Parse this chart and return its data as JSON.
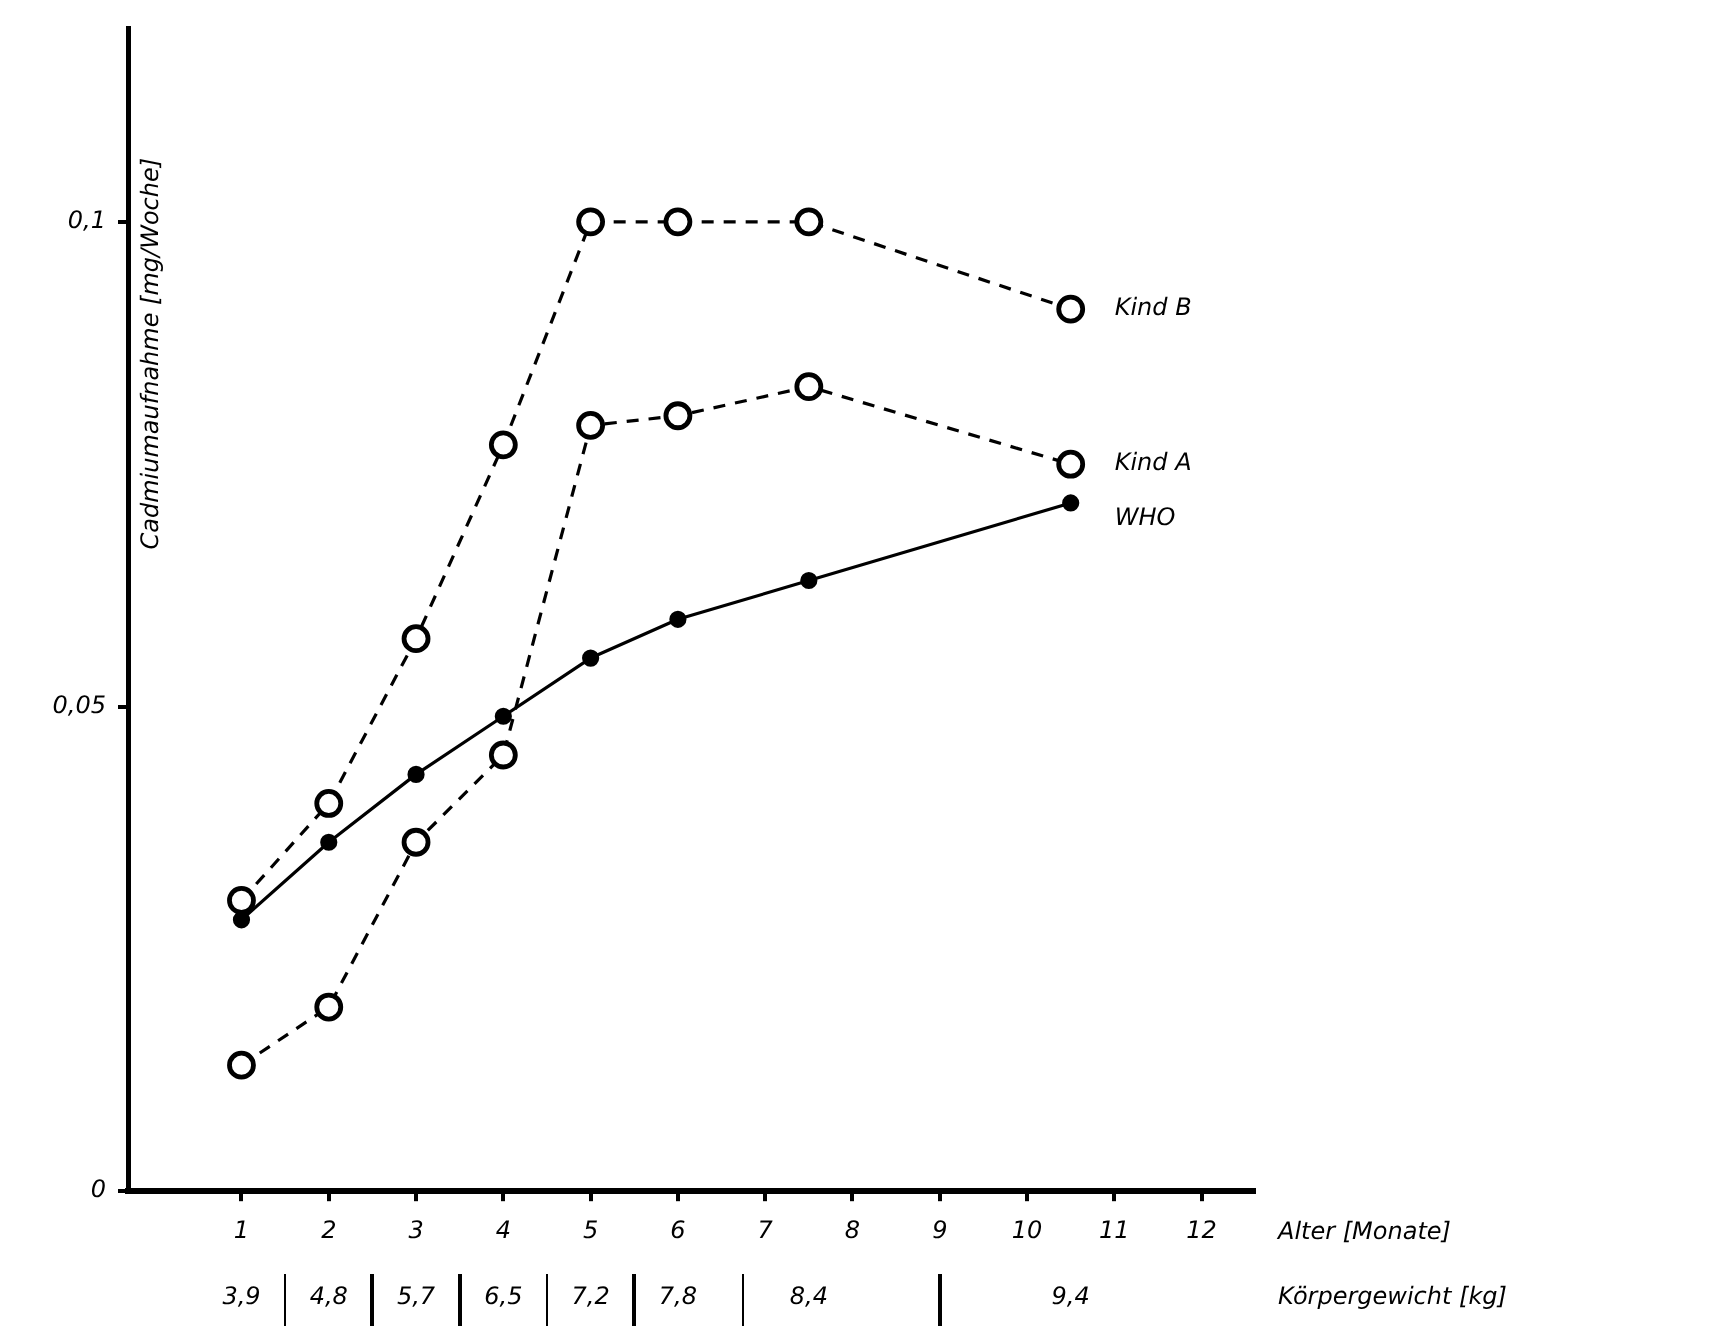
{
  "chart_data": {
    "type": "line",
    "xlabel": "Alter [Monate]",
    "ylabel": "Cadmiumaufnahme [mg/Woche]",
    "annotations": [
      "Körpergewicht [kg]",
      "3,9",
      "4,8",
      "5,7",
      "6,5",
      "7,2",
      "7,8",
      "8,4",
      "9,4"
    ],
    "x": [
      1,
      2,
      3,
      4,
      5,
      6,
      7.5,
      10.5
    ],
    "series": [
      {
        "name": "Kind B",
        "color": "#000000",
        "line_style": "dashed",
        "values": [
          0.03,
          0.04,
          0.057,
          0.077,
          0.1,
          0.1,
          0.1,
          0.091
        ]
      },
      {
        "name": "Kind A",
        "color": "#000000",
        "line_style": "dashed",
        "values": [
          0.013,
          0.019,
          0.036,
          0.045,
          0.079,
          0.08,
          0.083,
          0.075
        ]
      },
      {
        "name": "WHO",
        "color": "#000000",
        "line_style": "solid",
        "values": [
          0.028,
          0.036,
          0.043,
          0.049,
          0.055,
          0.059,
          0.063,
          0.071
        ]
      }
    ],
    "xlim": [
      -0.3,
      12.6
    ],
    "xticks": [
      1,
      2,
      3,
      4,
      5,
      6,
      7,
      8,
      9,
      10,
      11,
      12
    ],
    "ylim": [
      0,
      0.12
    ],
    "yticks": [
      {
        "value": 0,
        "label": "0"
      },
      {
        "value": 0.05,
        "label": "0,05"
      },
      {
        "value": 0.1,
        "label": "0,1"
      }
    ],
    "marker": "circle",
    "legend": false,
    "grid": false
  }
}
